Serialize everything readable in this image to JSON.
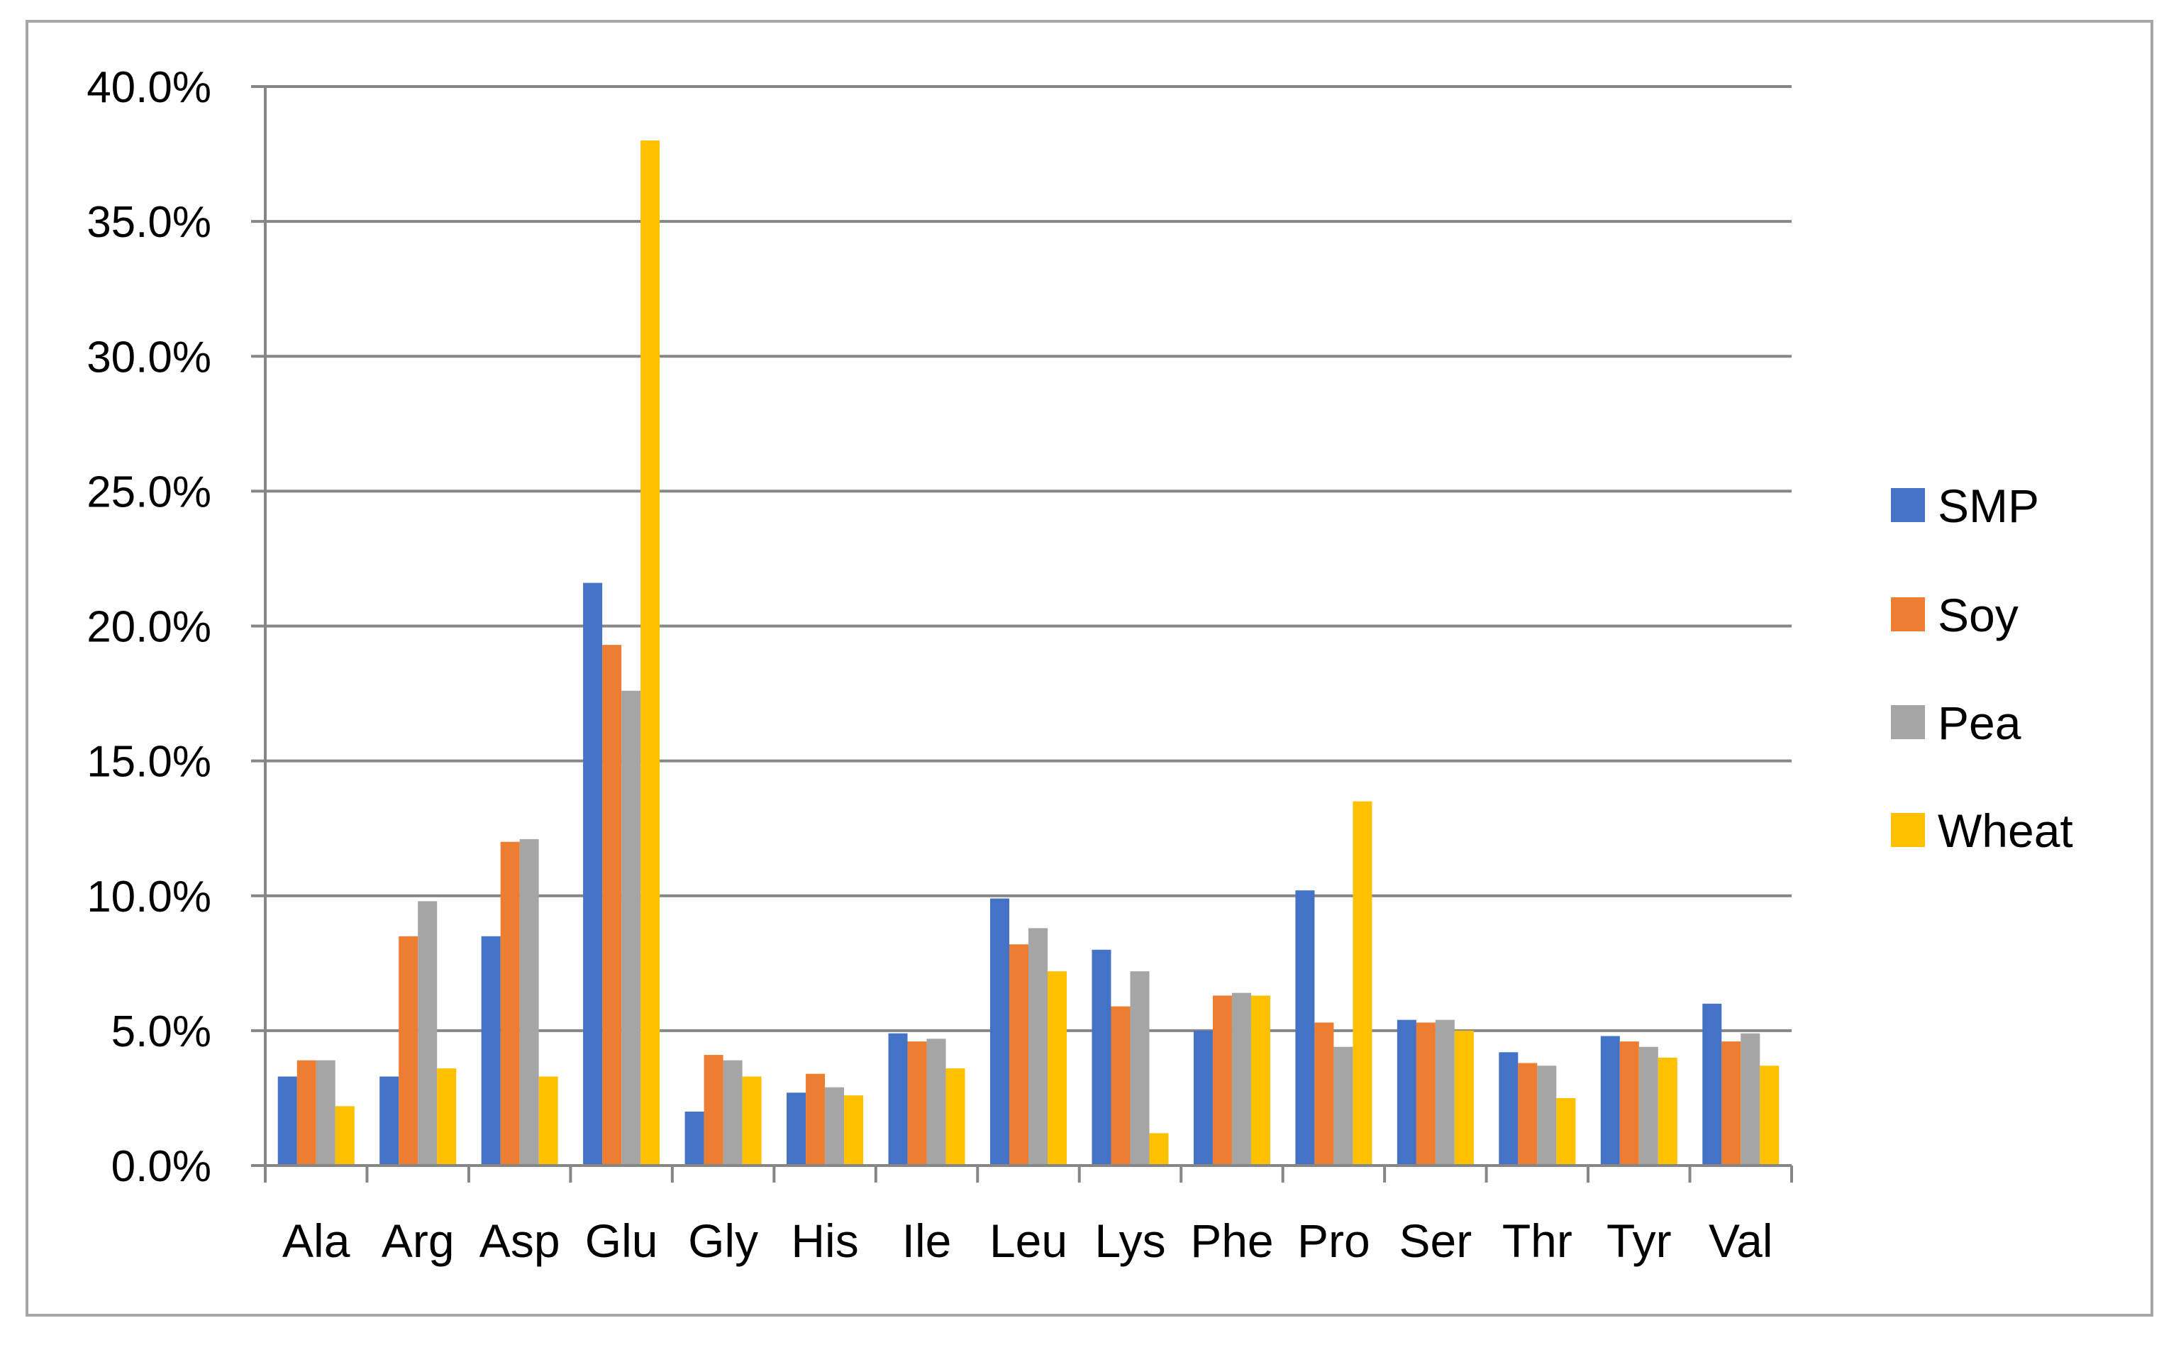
{
  "chart_data": {
    "type": "bar",
    "title": "",
    "xlabel": "",
    "ylabel": "",
    "ylim": [
      0,
      0.4
    ],
    "yticks": [
      0,
      0.05,
      0.1,
      0.15,
      0.2,
      0.25,
      0.3,
      0.35,
      0.4
    ],
    "ytick_labels": [
      "0.0%",
      "5.0%",
      "10.0%",
      "15.0%",
      "20.0%",
      "25.0%",
      "30.0%",
      "35.0%",
      "40.0%"
    ],
    "grid": true,
    "legend_position": "right",
    "categories": [
      "Ala",
      "Arg",
      "Asp",
      "Glu",
      "Gly",
      "His",
      "Ile",
      "Leu",
      "Lys",
      "Phe",
      "Pro",
      "Ser",
      "Thr",
      "Tyr",
      "Val"
    ],
    "series": [
      {
        "name": "SMP",
        "color": "#4472c4",
        "values": [
          0.033,
          0.033,
          0.085,
          0.216,
          0.02,
          0.027,
          0.049,
          0.099,
          0.08,
          0.05,
          0.102,
          0.054,
          0.042,
          0.048,
          0.06
        ]
      },
      {
        "name": "Soy",
        "color": "#ed7d31",
        "values": [
          0.039,
          0.085,
          0.12,
          0.193,
          0.041,
          0.034,
          0.046,
          0.082,
          0.059,
          0.063,
          0.053,
          0.053,
          0.038,
          0.046,
          0.046
        ]
      },
      {
        "name": "Pea",
        "color": "#a5a5a5",
        "values": [
          0.039,
          0.098,
          0.121,
          0.176,
          0.039,
          0.029,
          0.047,
          0.088,
          0.072,
          0.064,
          0.044,
          0.054,
          0.037,
          0.044,
          0.049
        ]
      },
      {
        "name": "Wheat",
        "color": "#ffc000",
        "values": [
          0.022,
          0.036,
          0.033,
          0.38,
          0.033,
          0.026,
          0.036,
          0.072,
          0.012,
          0.063,
          0.135,
          0.05,
          0.025,
          0.04,
          0.037
        ]
      }
    ]
  }
}
